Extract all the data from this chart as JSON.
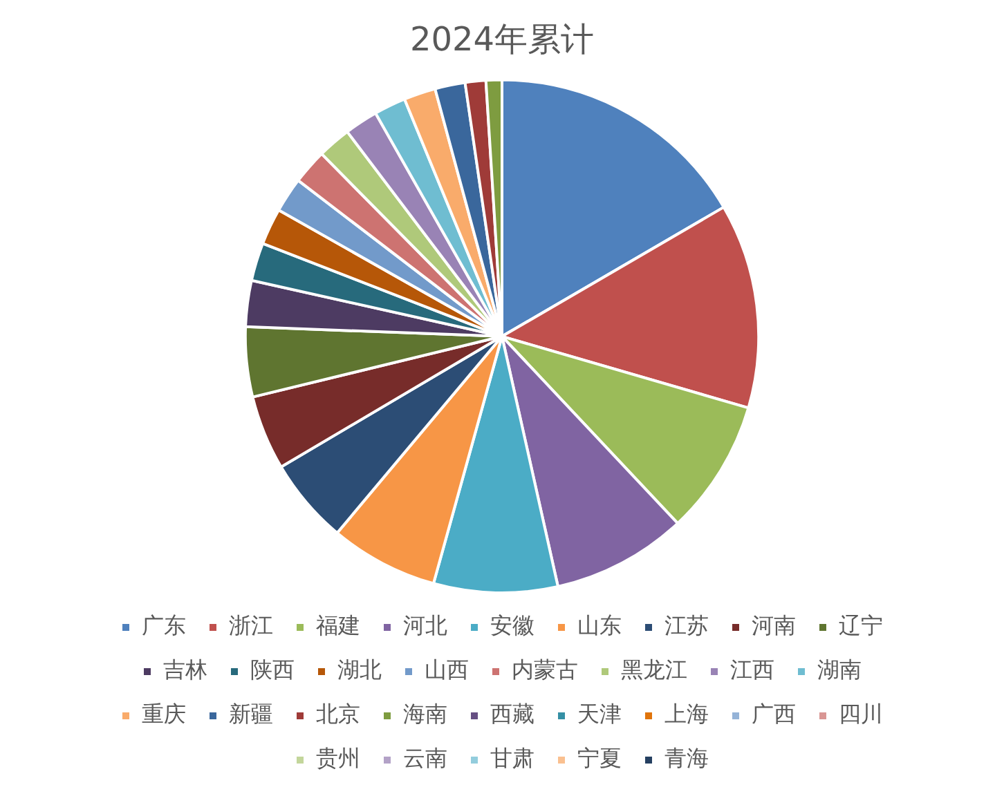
{
  "chart_data": {
    "type": "pie",
    "title": "2024年累计",
    "categories": [
      "广东",
      "浙江",
      "福建",
      "河北",
      "安徽",
      "山东",
      "江苏",
      "河南",
      "辽宁",
      "吉林",
      "陕西",
      "湖北",
      "山西",
      "内蒙古",
      "黑龙江",
      "江西",
      "湖南",
      "重庆",
      "新疆",
      "北京",
      "海南",
      "西藏",
      "天津",
      "上海",
      "广西",
      "四川",
      "贵州",
      "云南",
      "甘肃",
      "宁夏",
      "青海"
    ],
    "values": [
      16.6,
      12.9,
      8.5,
      8.5,
      7.8,
      6.8,
      5.4,
      4.7,
      4.4,
      2.9,
      2.4,
      2.3,
      2.2,
      2.2,
      2.1,
      2.1,
      2.0,
      2.0,
      1.9,
      1.3,
      1.0,
      0,
      0,
      0,
      0,
      0,
      0,
      0,
      0,
      0,
      0
    ],
    "colors": [
      "#4f81bd",
      "#c0504d",
      "#9bbb59",
      "#8064a2",
      "#4bacc6",
      "#f79646",
      "#2c4d75",
      "#772c2a",
      "#5f7530",
      "#4d3b62",
      "#276a7c",
      "#b65708",
      "#729aca",
      "#cd7371",
      "#afc97a",
      "#9983b5",
      "#6fbdd1",
      "#f9ab6b",
      "#3a679c",
      "#9f3b38",
      "#7e9c40",
      "#664f83",
      "#3590a5",
      "#e0740b",
      "#95b3d7",
      "#d99694",
      "#c3d69b",
      "#b3a2c7",
      "#93cddd",
      "#fac090",
      "#254061"
    ],
    "legend": "bottom"
  }
}
